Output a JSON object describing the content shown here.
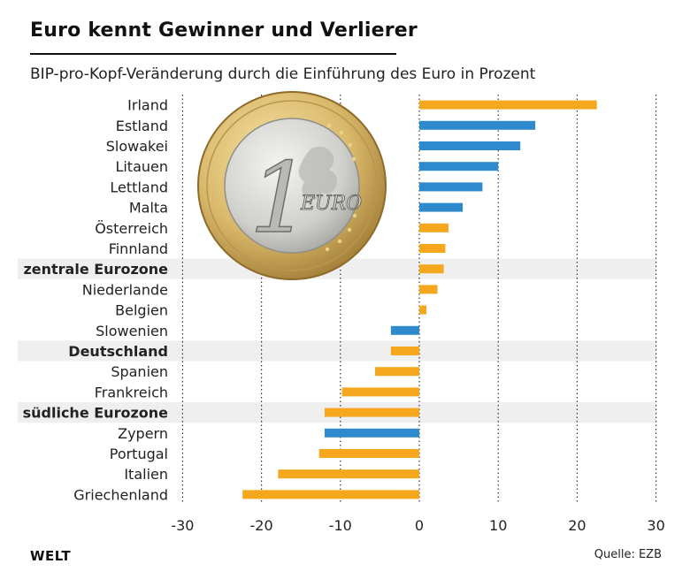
{
  "header": {
    "title": "Euro kennt Gewinner und Verlierer",
    "subtitle": "BIP-pro-Kopf-Veränderung durch die Einführung des Euro in Prozent"
  },
  "footer": {
    "brand": "WELT",
    "source": "Quelle: EZB"
  },
  "colors": {
    "orange": "#F5A71D",
    "blue": "#2F8ACD",
    "highlight_band": "#EFEFEF",
    "grid": "#333333"
  },
  "illustration": {
    "coin_icon": "euro-coin-icon",
    "coin_text": "EURO",
    "coin_numeral": "1"
  },
  "chart_data": {
    "type": "bar",
    "orientation": "horizontal",
    "title": "Euro kennt Gewinner und Verlierer",
    "xlabel": "",
    "ylabel": "",
    "xlim": [
      -30,
      30
    ],
    "xticks": [
      -30,
      -20,
      -10,
      0,
      10,
      20,
      30
    ],
    "grid": "vertical dotted",
    "categories": [
      "Irland",
      "Estland",
      "Slowakei",
      "Litauen",
      "Lettland",
      "Malta",
      "Österreich",
      "Finnland",
      "zentrale Eurozone",
      "Niederlande",
      "Belgien",
      "Slowenien",
      "Deutschland",
      "Spanien",
      "Frankreich",
      "südliche Eurozone",
      "Zypern",
      "Portugal",
      "Italien",
      "Griechenland"
    ],
    "values": [
      22.5,
      14.7,
      12.8,
      10.0,
      8.0,
      5.5,
      3.7,
      3.3,
      3.1,
      2.3,
      0.9,
      -3.6,
      -3.6,
      -5.6,
      -9.8,
      -12.0,
      -12.0,
      -12.7,
      -17.9,
      -22.4
    ],
    "colors": [
      "orange",
      "blue",
      "blue",
      "blue",
      "blue",
      "blue",
      "orange",
      "orange",
      "orange",
      "orange",
      "orange",
      "blue",
      "orange",
      "orange",
      "orange",
      "orange",
      "blue",
      "orange",
      "orange",
      "orange"
    ],
    "bold": [
      false,
      false,
      false,
      false,
      false,
      false,
      false,
      false,
      true,
      false,
      false,
      false,
      true,
      false,
      false,
      true,
      false,
      false,
      false,
      false
    ],
    "highlighted": [
      false,
      false,
      false,
      false,
      false,
      false,
      false,
      false,
      true,
      false,
      false,
      false,
      true,
      false,
      false,
      true,
      false,
      false,
      false,
      false
    ]
  }
}
